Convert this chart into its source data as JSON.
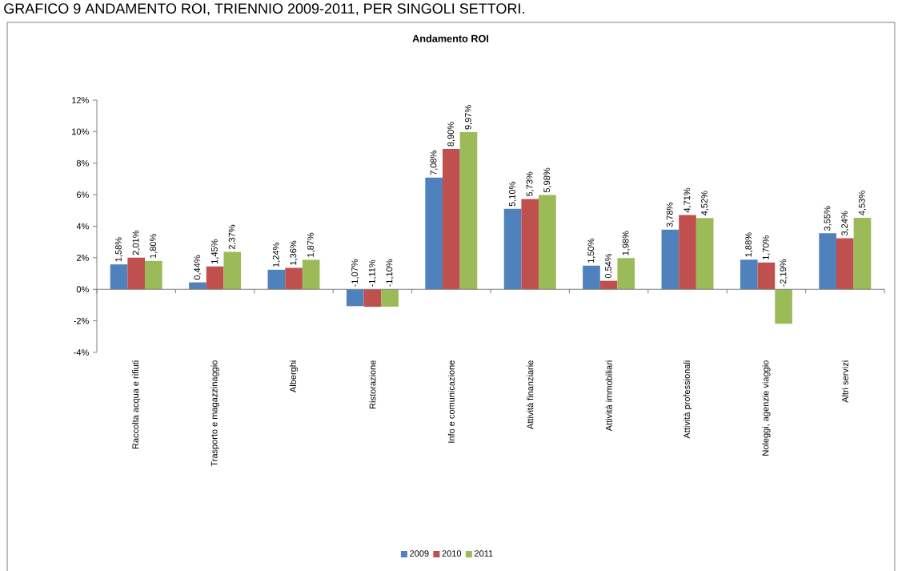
{
  "chart_data": {
    "type": "bar",
    "title": "Andamento ROI",
    "annotations": [
      "GRAFICO 9 ANDAMENTO ROI, TRIENNIO 2009-2011, PER SINGOLI SETTORI."
    ],
    "categories": [
      "Raccolta acqua e rifiuti",
      "Trasporto e magazzinaggio",
      "Alberghi",
      "Ristorazione",
      "Info e comunicazione",
      "Attività finanziarie",
      "Attività immobiliari",
      "Attività professionali",
      "Noleggi, agenzie viaggio",
      "Altri servizi"
    ],
    "series": [
      {
        "name": "2009",
        "color": "#4f81bd",
        "values": [
          1.58,
          0.44,
          1.24,
          -1.07,
          7.08,
          5.1,
          1.5,
          3.78,
          1.88,
          3.55
        ],
        "value_labels": [
          "1,58%",
          "0,44%",
          "1,24%",
          "-1,07%",
          "7,08%",
          "5,10%",
          "1,50%",
          "3,78%",
          "1,88%",
          "3,55%"
        ]
      },
      {
        "name": "2010",
        "color": "#c0504d",
        "values": [
          2.01,
          1.45,
          1.36,
          -1.11,
          8.9,
          5.73,
          0.54,
          4.71,
          1.7,
          3.24
        ],
        "value_labels": [
          "2,01%",
          "1,45%",
          "1,36%",
          "-1,11%",
          "8,90%",
          "5,73%",
          "0,54%",
          "4,71%",
          "1,70%",
          "3,24%"
        ]
      },
      {
        "name": "2011",
        "color": "#9bbb59",
        "values": [
          1.8,
          2.37,
          1.87,
          -1.1,
          9.97,
          5.98,
          1.98,
          4.52,
          -2.19,
          4.53
        ],
        "value_labels": [
          "1,80%",
          "2,37%",
          "1,87%",
          "-1,10%",
          "9,97%",
          "5,98%",
          "1,98%",
          "4,52%",
          "-2,19%",
          "4,53%"
        ]
      }
    ],
    "ylim": [
      -4,
      12
    ],
    "yticks": [
      {
        "value": -4,
        "label": "-4%"
      },
      {
        "value": -2,
        "label": "-2%"
      },
      {
        "value": 0,
        "label": "0%"
      },
      {
        "value": 2,
        "label": "2%"
      },
      {
        "value": 4,
        "label": "4%"
      },
      {
        "value": 6,
        "label": "6%"
      },
      {
        "value": 8,
        "label": "8%"
      },
      {
        "value": 10,
        "label": "10%"
      },
      {
        "value": 12,
        "label": "12%"
      }
    ],
    "legend": "bottom"
  }
}
